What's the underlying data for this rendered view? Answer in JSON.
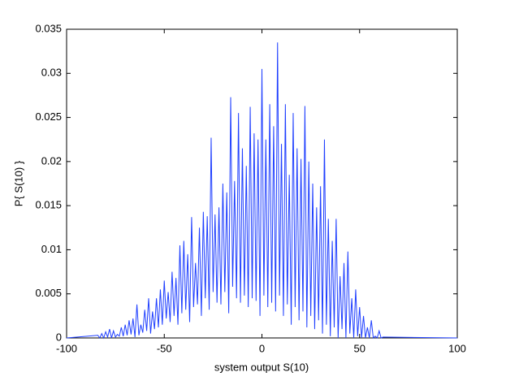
{
  "chart_data": {
    "type": "line",
    "xlabel": "system output S(10)",
    "ylabel": "P{ S(10) }",
    "x": [
      -100,
      -84,
      -83,
      -82,
      -81,
      -80,
      -79,
      -78,
      -77,
      -76,
      -75,
      -74,
      -73,
      -72,
      -71,
      -70,
      -69,
      -68,
      -67,
      -66,
      -65,
      -64,
      -63,
      -62,
      -61,
      -60,
      -59,
      -58,
      -57,
      -56,
      -55,
      -54,
      -53,
      -52,
      -51,
      -50,
      -49,
      -48,
      -47,
      -46,
      -45,
      -44,
      -43,
      -42,
      -41,
      -40,
      -39,
      -38,
      -37,
      -36,
      -35,
      -34,
      -33,
      -32,
      -31,
      -30,
      -29,
      -28,
      -27,
      -26,
      -25,
      -24,
      -23,
      -22,
      -21,
      -20,
      -19,
      -18,
      -17,
      -16,
      -15,
      -14,
      -13,
      -12,
      -11,
      -10,
      -9,
      -8,
      -7,
      -6,
      -5,
      -4,
      -3,
      -2,
      -1,
      0,
      1,
      2,
      3,
      4,
      5,
      6,
      7,
      8,
      9,
      10,
      11,
      12,
      13,
      14,
      15,
      16,
      17,
      18,
      19,
      20,
      21,
      22,
      23,
      24,
      25,
      26,
      27,
      28,
      29,
      30,
      31,
      32,
      33,
      34,
      35,
      36,
      37,
      38,
      39,
      40,
      41,
      42,
      43,
      44,
      45,
      46,
      47,
      48,
      49,
      50,
      51,
      52,
      53,
      54,
      55,
      56,
      57,
      58,
      59,
      60,
      61,
      62,
      100
    ],
    "values": [
      0,
      0.0003,
      0,
      0.0005,
      0,
      0.0007,
      0.0001,
      0.001,
      0,
      0.0008,
      0.0001,
      0.0004,
      0.0002,
      0.0012,
      0.0002,
      0.0015,
      0.0003,
      0.002,
      0.0004,
      0.0022,
      0.0001,
      0.0038,
      0.0003,
      0.0015,
      0.0006,
      0.0032,
      0.0008,
      0.0045,
      0.0005,
      0.003,
      0.001,
      0.0045,
      0.0012,
      0.0055,
      0.0015,
      0.0065,
      0.0022,
      0.0052,
      0.0018,
      0.0075,
      0.0025,
      0.0068,
      0.0015,
      0.0105,
      0.0028,
      0.011,
      0.0032,
      0.0095,
      0.0018,
      0.0137,
      0.0035,
      0.0085,
      0.0038,
      0.0125,
      0.0025,
      0.0143,
      0.0045,
      0.0138,
      0.0032,
      0.0227,
      0.0052,
      0.014,
      0.004,
      0.0148,
      0.0038,
      0.0175,
      0.0052,
      0.0165,
      0.0028,
      0.0273,
      0.0058,
      0.0178,
      0.0045,
      0.0255,
      0.004,
      0.0215,
      0.0048,
      0.0195,
      0.0035,
      0.0262,
      0.0045,
      0.0232,
      0.0042,
      0.0225,
      0.0025,
      0.0305,
      0.0048,
      0.0225,
      0.0035,
      0.0265,
      0.004,
      0.024,
      0.003,
      0.0335,
      0.0048,
      0.022,
      0.0025,
      0.0265,
      0.0038,
      0.0185,
      0.0015,
      0.0255,
      0.0035,
      0.0215,
      0.002,
      0.0203,
      0.003,
      0.0263,
      0.0012,
      0.02,
      0.0025,
      0.0175,
      0.001,
      0.0148,
      0.002,
      0.0172,
      0.0005,
      0.0225,
      0.0015,
      0.0135,
      0.0002,
      0.011,
      0.0012,
      0.0135,
      0,
      0.007,
      0.001,
      0.0085,
      0,
      0.0098,
      0.0005,
      0.0045,
      0,
      0.0055,
      0.0002,
      0.0035,
      0,
      0.0025,
      0,
      0.0012,
      0,
      0.002,
      0,
      0.0002,
      0,
      0.0008,
      0,
      0.0001,
      0
    ],
    "color": "#1f3fff",
    "xlim": [
      -100,
      100
    ],
    "xticks": [
      -100,
      -50,
      0,
      50,
      100
    ],
    "ylim": [
      0,
      0.035
    ],
    "yticks": [
      0,
      0.005,
      0.01,
      0.015,
      0.02,
      0.025,
      0.03,
      0.035
    ],
    "grid": false
  }
}
